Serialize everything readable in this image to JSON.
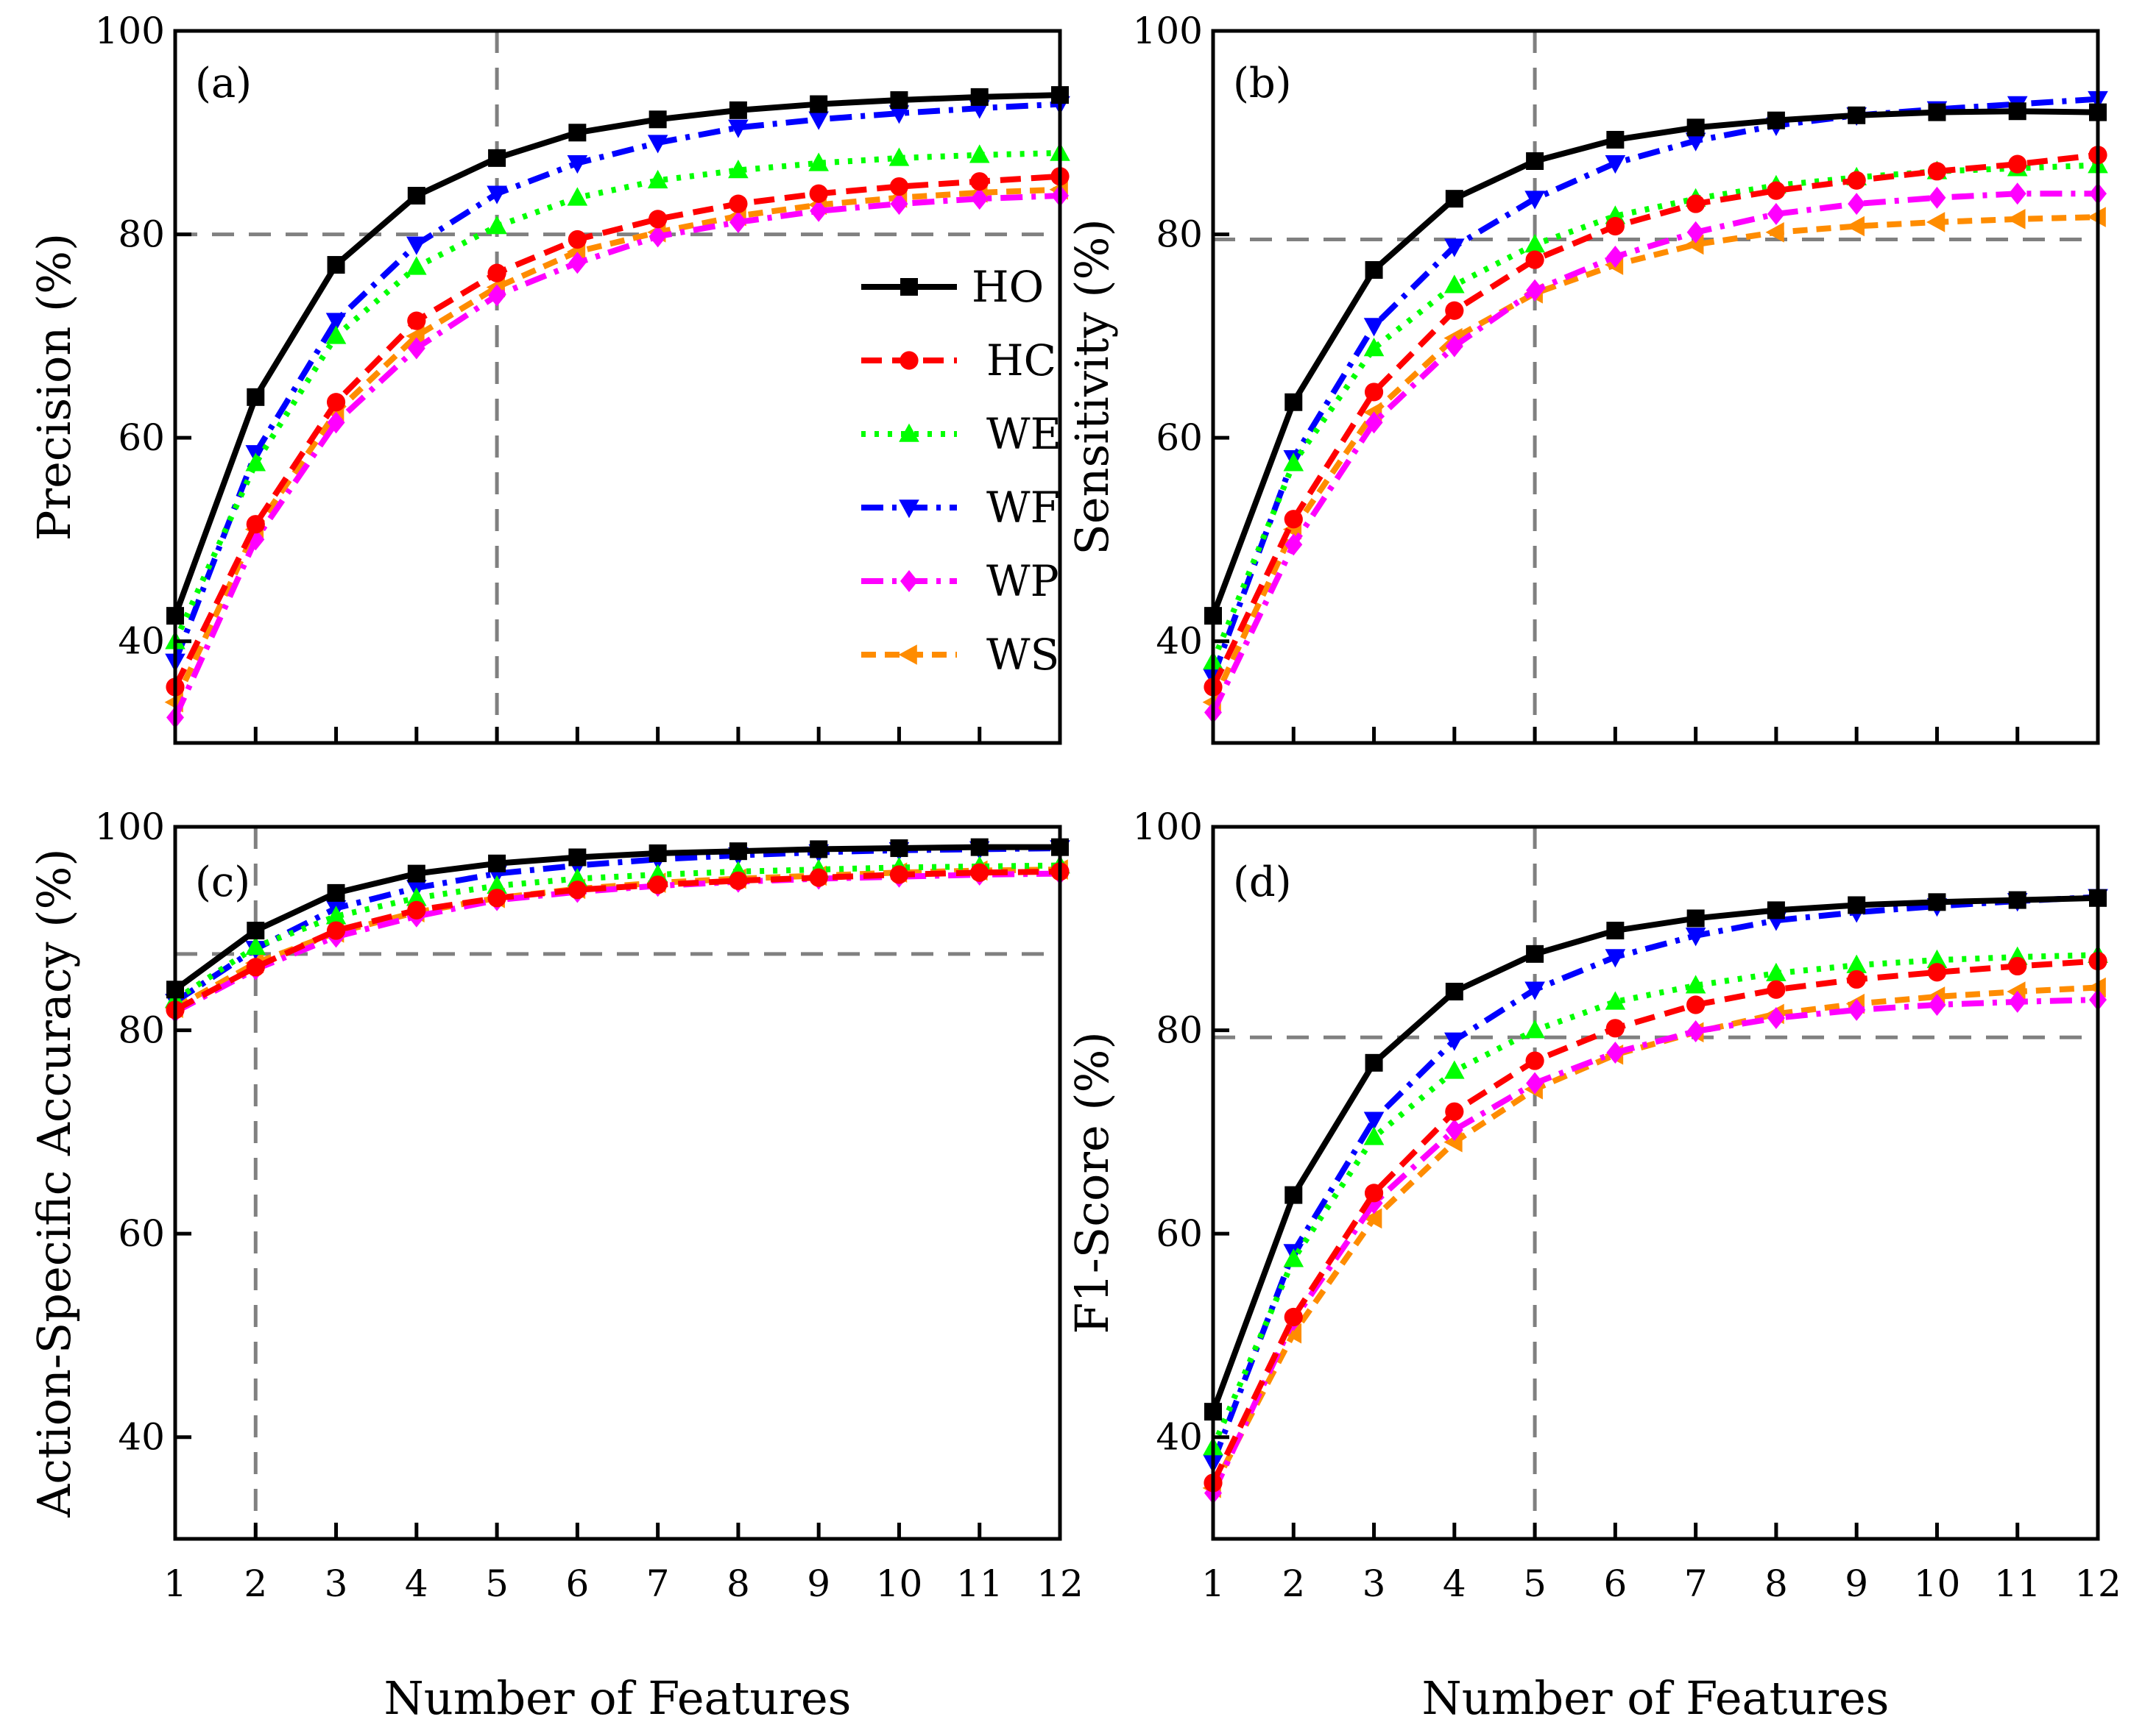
{
  "figure": {
    "x_axis_title": "Number of Features",
    "series_styles": {
      "HO": {
        "color": "#000000",
        "marker": "square",
        "dash": "solid"
      },
      "HC": {
        "color": "#ff0000",
        "marker": "circle",
        "dash": "dash"
      },
      "WE": {
        "color": "#00ff00",
        "marker": "triangle-up",
        "dash": "dot"
      },
      "WF": {
        "color": "#0000ff",
        "marker": "triangle-down",
        "dash": "dashdot"
      },
      "WP": {
        "color": "#ff00ff",
        "marker": "diamond",
        "dash": "dashdot"
      },
      "WS": {
        "color": "#ff8c00",
        "marker": "triangle-left",
        "dash": "shortdash"
      }
    },
    "legend_order": [
      "HO",
      "HC",
      "WE",
      "WF",
      "WP",
      "WS"
    ]
  },
  "chart_data": [
    {
      "panel": "(a)",
      "type": "line",
      "ylabel": "Precision (%)",
      "xlabel": "Number of Features",
      "x": [
        1,
        2,
        3,
        4,
        5,
        6,
        7,
        8,
        9,
        10,
        11,
        12
      ],
      "xlim": [
        1,
        12
      ],
      "ylim": [
        30,
        100
      ],
      "yticks": [
        40,
        60,
        80,
        100
      ],
      "ref_vline": 5,
      "ref_hline": 80,
      "legend": true,
      "legend_position": "center-right",
      "series": [
        {
          "name": "HO",
          "values": [
            42.5,
            64.0,
            77.0,
            83.8,
            87.5,
            90.0,
            91.3,
            92.2,
            92.8,
            93.2,
            93.5,
            93.7
          ]
        },
        {
          "name": "HC",
          "values": [
            35.5,
            51.5,
            63.5,
            71.5,
            76.2,
            79.5,
            81.5,
            83.0,
            84.0,
            84.7,
            85.2,
            85.7
          ]
        },
        {
          "name": "WE",
          "values": [
            40.0,
            57.5,
            70.0,
            76.8,
            80.8,
            83.6,
            85.3,
            86.3,
            87.0,
            87.5,
            87.8,
            88.0
          ]
        },
        {
          "name": "WF",
          "values": [
            38.0,
            58.5,
            71.5,
            79.0,
            84.0,
            87.0,
            89.0,
            90.5,
            91.3,
            91.9,
            92.4,
            92.8
          ]
        },
        {
          "name": "WP",
          "values": [
            32.5,
            50.0,
            61.5,
            68.8,
            74.0,
            77.2,
            79.8,
            81.2,
            82.3,
            83.0,
            83.5,
            83.8
          ]
        },
        {
          "name": "WS",
          "values": [
            34.0,
            51.0,
            62.5,
            70.0,
            74.8,
            78.3,
            80.2,
            81.8,
            82.9,
            83.6,
            84.1,
            84.4
          ]
        }
      ]
    },
    {
      "panel": "(b)",
      "type": "line",
      "ylabel": "Sensitivity (%)",
      "xlabel": "Number of Features",
      "x": [
        1,
        2,
        3,
        4,
        5,
        6,
        7,
        8,
        9,
        10,
        11,
        12
      ],
      "xlim": [
        1,
        12
      ],
      "ylim": [
        30,
        100
      ],
      "yticks": [
        40,
        60,
        80,
        100
      ],
      "ref_vline": 5,
      "ref_hline": 79.5,
      "legend": false,
      "series": [
        {
          "name": "HO",
          "values": [
            42.5,
            63.5,
            76.5,
            83.5,
            87.2,
            89.3,
            90.5,
            91.2,
            91.7,
            92.0,
            92.1,
            92.0
          ]
        },
        {
          "name": "HC",
          "values": [
            35.5,
            52.0,
            64.5,
            72.5,
            77.5,
            80.8,
            83.0,
            84.3,
            85.3,
            86.2,
            86.9,
            87.8
          ]
        },
        {
          "name": "WE",
          "values": [
            38.0,
            57.5,
            68.8,
            75.0,
            79.0,
            81.8,
            83.5,
            84.8,
            85.6,
            86.2,
            86.5,
            86.8
          ]
        },
        {
          "name": "WF",
          "values": [
            36.5,
            58.0,
            71.0,
            78.8,
            83.5,
            87.0,
            89.2,
            90.7,
            91.7,
            92.3,
            92.8,
            93.3
          ]
        },
        {
          "name": "WP",
          "values": [
            33.0,
            49.5,
            61.5,
            69.0,
            74.5,
            77.8,
            80.2,
            82.0,
            83.0,
            83.6,
            84.0,
            84.0
          ]
        },
        {
          "name": "WS",
          "values": [
            34.0,
            51.0,
            62.5,
            69.8,
            74.2,
            77.0,
            79.0,
            80.2,
            80.8,
            81.2,
            81.5,
            81.7
          ]
        }
      ]
    },
    {
      "panel": "(c)",
      "type": "line",
      "ylabel": "Action-Specific Accuracy (%)",
      "xlabel": "Number of Features",
      "x": [
        1,
        2,
        3,
        4,
        5,
        6,
        7,
        8,
        9,
        10,
        11,
        12
      ],
      "xlim": [
        1,
        12
      ],
      "xticks": [
        1,
        2,
        3,
        4,
        5,
        6,
        7,
        8,
        9,
        10,
        11,
        12
      ],
      "ylim": [
        30,
        100
      ],
      "yticks": [
        40,
        60,
        80,
        100
      ],
      "ref_vline": 2,
      "ref_hline": 87.5,
      "legend": false,
      "series": [
        {
          "name": "HO",
          "values": [
            84.0,
            89.8,
            93.5,
            95.4,
            96.4,
            97.0,
            97.4,
            97.6,
            97.8,
            97.9,
            98.0,
            98.0
          ]
        },
        {
          "name": "HC",
          "values": [
            82.0,
            86.2,
            89.8,
            91.8,
            93.0,
            93.8,
            94.3,
            94.7,
            95.0,
            95.3,
            95.5,
            95.6
          ]
        },
        {
          "name": "WE",
          "values": [
            83.0,
            88.2,
            91.2,
            93.0,
            94.2,
            94.9,
            95.3,
            95.6,
            95.8,
            96.0,
            96.1,
            96.2
          ]
        },
        {
          "name": "WF",
          "values": [
            82.8,
            88.0,
            92.0,
            94.0,
            95.4,
            96.2,
            96.8,
            97.2,
            97.5,
            97.7,
            97.8,
            97.9
          ]
        },
        {
          "name": "WP",
          "values": [
            81.8,
            86.0,
            89.2,
            91.2,
            92.8,
            93.6,
            94.2,
            94.6,
            94.9,
            95.1,
            95.3,
            95.4
          ]
        },
        {
          "name": "WS",
          "values": [
            82.2,
            86.6,
            89.6,
            91.6,
            93.0,
            93.9,
            94.5,
            94.9,
            95.2,
            95.5,
            95.7,
            95.8
          ]
        }
      ]
    },
    {
      "panel": "(d)",
      "type": "line",
      "ylabel": "F1-Score (%)",
      "xlabel": "Number of Features",
      "x": [
        1,
        2,
        3,
        4,
        5,
        6,
        7,
        8,
        9,
        10,
        11,
        12
      ],
      "xlim": [
        1,
        12
      ],
      "xticks": [
        1,
        2,
        3,
        4,
        5,
        6,
        7,
        8,
        9,
        10,
        11,
        12
      ],
      "ylim": [
        30,
        100
      ],
      "yticks": [
        40,
        60,
        80,
        100
      ],
      "ref_vline": 5,
      "ref_hline": 79.3,
      "legend": false,
      "series": [
        {
          "name": "HO",
          "values": [
            42.5,
            63.8,
            76.8,
            83.8,
            87.5,
            89.8,
            91.0,
            91.8,
            92.3,
            92.6,
            92.8,
            93.0
          ]
        },
        {
          "name": "HC",
          "values": [
            35.5,
            51.8,
            64.0,
            72.0,
            77.0,
            80.2,
            82.5,
            84.0,
            85.0,
            85.7,
            86.3,
            86.8
          ]
        },
        {
          "name": "WE",
          "values": [
            39.0,
            57.5,
            69.5,
            76.0,
            80.0,
            82.8,
            84.4,
            85.6,
            86.4,
            86.9,
            87.2,
            87.4
          ]
        },
        {
          "name": "WF",
          "values": [
            37.5,
            58.2,
            71.2,
            79.0,
            84.0,
            87.2,
            89.3,
            90.8,
            91.6,
            92.2,
            92.7,
            93.1
          ]
        },
        {
          "name": "WP",
          "values": [
            34.5,
            51.5,
            63.0,
            70.2,
            74.8,
            77.8,
            79.9,
            81.2,
            82.0,
            82.5,
            82.8,
            83.0
          ]
        },
        {
          "name": "WS",
          "values": [
            35.0,
            50.2,
            61.5,
            69.0,
            74.2,
            77.6,
            79.8,
            81.6,
            82.6,
            83.3,
            83.8,
            84.2
          ]
        }
      ]
    }
  ]
}
